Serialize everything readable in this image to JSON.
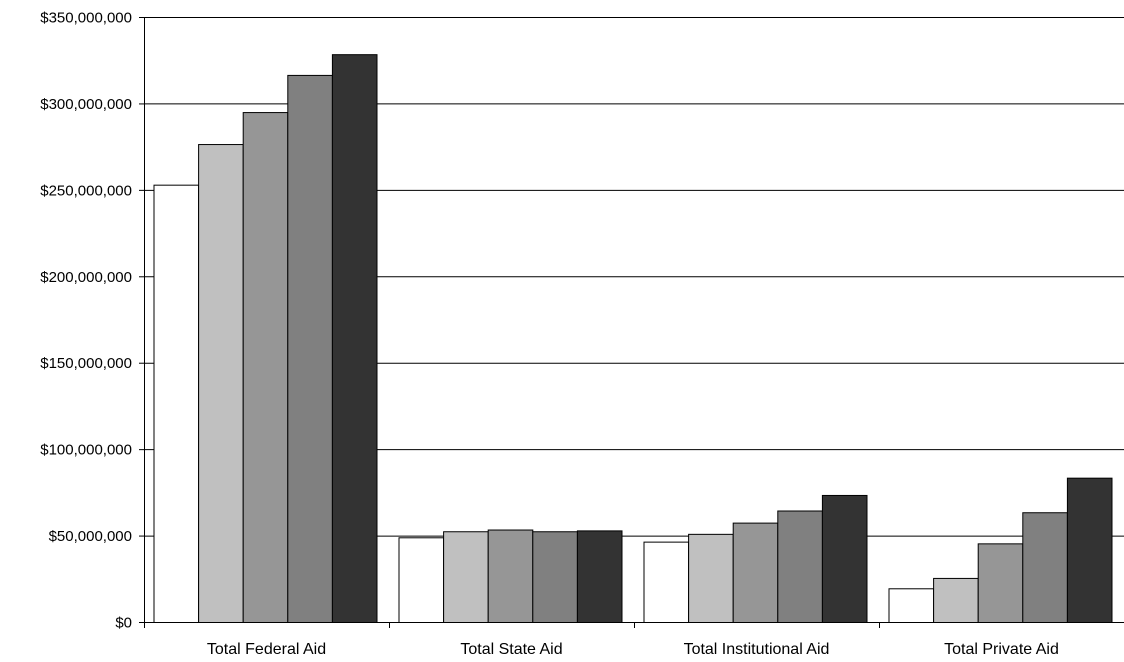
{
  "chart_data": {
    "type": "bar",
    "title": "",
    "xlabel": "",
    "ylabel": "",
    "categories": [
      "Total Federal Aid",
      "Total State Aid",
      "Total Institutional Aid",
      "Total Private Aid"
    ],
    "series": [
      {
        "values": [
          253000000,
          49000000,
          46500000,
          19500000
        ],
        "color": "#ffffff"
      },
      {
        "values": [
          276500000,
          52500000,
          51000000,
          25500000
        ],
        "color": "#c0c0c0"
      },
      {
        "values": [
          295000000,
          53500000,
          57500000,
          45500000
        ],
        "color": "#969696"
      },
      {
        "values": [
          316500000,
          52500000,
          64500000,
          63500000
        ],
        "color": "#808080"
      },
      {
        "values": [
          328500000,
          53000000,
          73500000,
          83500000
        ],
        "color": "#333333"
      }
    ],
    "ylim": [
      0,
      350000000
    ],
    "yticks": [
      0,
      50000000,
      100000000,
      150000000,
      200000000,
      250000000,
      300000000,
      350000000
    ],
    "ytick_labels": [
      "$0",
      "$50,000,000",
      "$100,000,000",
      "$150,000,000",
      "$200,000,000",
      "$250,000,000",
      "$300,000,000",
      "$350,000,000"
    ],
    "grid": true,
    "legend": "none"
  }
}
